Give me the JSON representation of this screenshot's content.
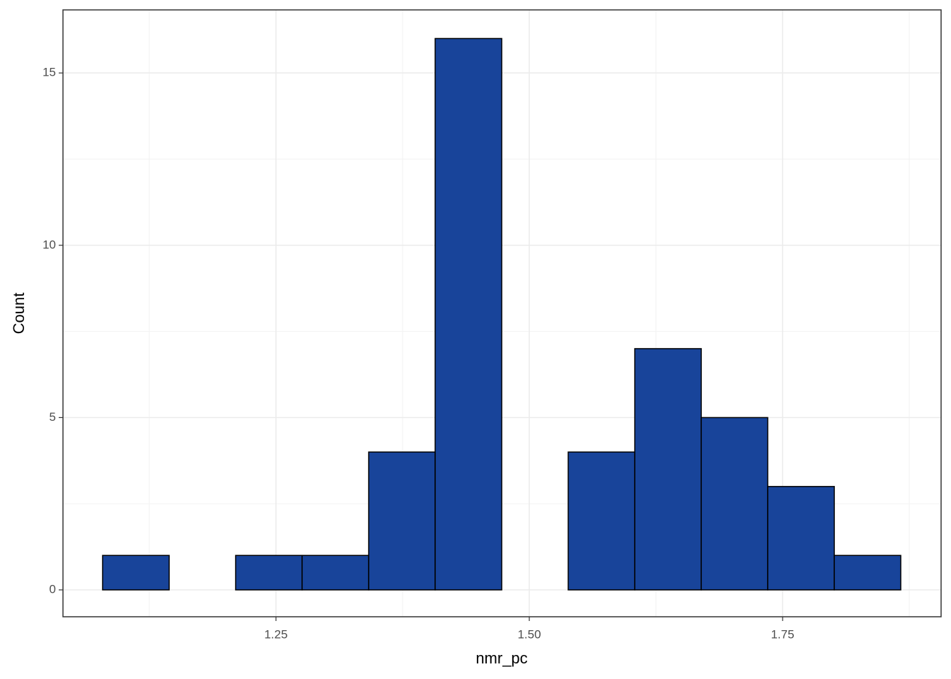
{
  "chart_data": {
    "type": "histogram",
    "x_label": "nmr_pc",
    "y_label": "Count",
    "bins": [
      1.0789,
      1.1446,
      1.2102,
      1.2758,
      1.3415,
      1.4071,
      1.4728,
      1.5384,
      1.6041,
      1.6697,
      1.7353,
      1.801,
      1.8666
    ],
    "values": [
      1,
      0,
      1,
      1,
      4,
      16,
      0,
      4,
      7,
      5,
      3,
      1
    ],
    "color": "#18449a",
    "edge_color": "#000000",
    "xlim": [
      1.0398,
      1.9064
    ],
    "ylim": [
      -0.78,
      16.83
    ],
    "xticks": [
      1.25,
      {
        "value": 1.5,
        "label": "1.50"
      },
      1.75
    ],
    "yticks": [
      0,
      5,
      10,
      15
    ],
    "grid": true
  }
}
